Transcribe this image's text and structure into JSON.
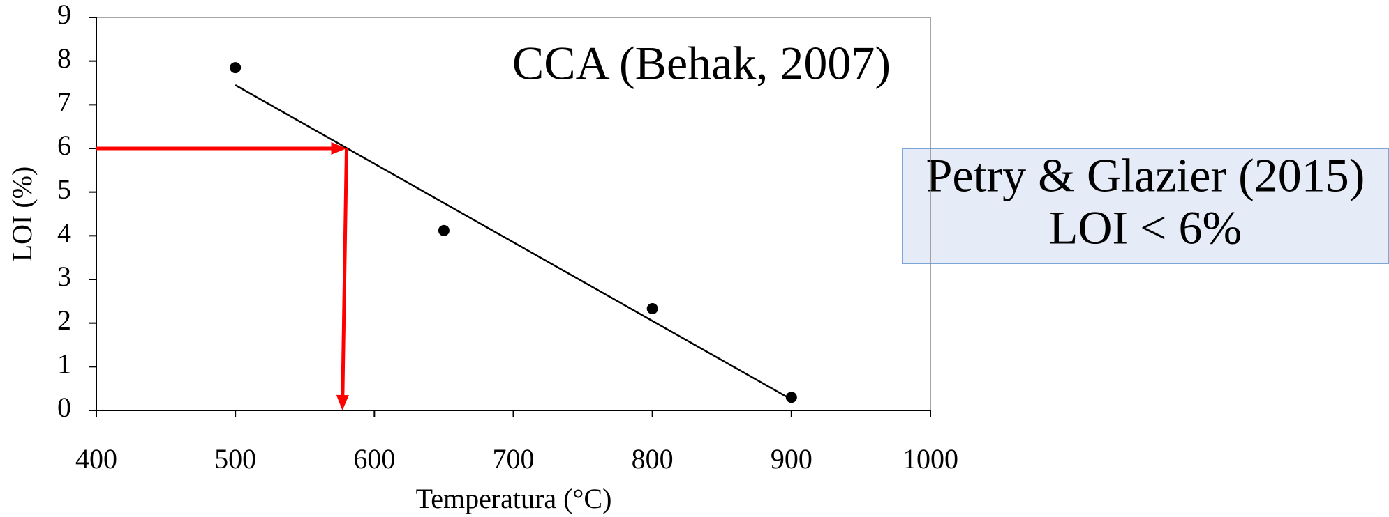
{
  "chart_data": {
    "type": "scatter",
    "x": [
      500,
      650,
      800,
      900
    ],
    "values": [
      7.85,
      4.12,
      2.33,
      0.3
    ],
    "color": "#000000",
    "trend": {
      "x": [
        500,
        900
      ],
      "values": [
        7.45,
        0.25
      ],
      "color": "#000000"
    },
    "arrows": [
      {
        "x": [
          400,
          580
        ],
        "values": [
          6,
          6
        ],
        "color": "#ff0000"
      },
      {
        "x": [
          580,
          577
        ],
        "values": [
          6,
          0
        ],
        "color": "#ff0000"
      }
    ],
    "xlim": [
      400,
      1000
    ],
    "xticks": [
      400,
      500,
      600,
      700,
      800,
      900,
      1000
    ],
    "ylim": [
      0,
      9
    ],
    "yticks": [
      0,
      1,
      2,
      3,
      4,
      5,
      6,
      7,
      8,
      9
    ],
    "x_label": "Temperatura (°C)",
    "y_label": "LOI (%)",
    "annotation": "CCA (Behak, 2007)",
    "note_box": [
      "Petry & Glazier (2015)",
      "LOI < 6%"
    ]
  }
}
